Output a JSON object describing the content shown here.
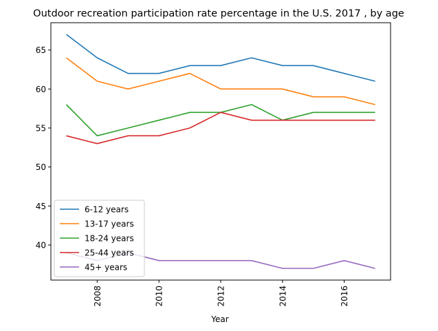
{
  "chart_data": {
    "type": "line",
    "title": "Outdoor recreation participation rate percentage in the U.S. 2017 , by age",
    "xlabel": "Year",
    "ylabel": "",
    "x": [
      2007,
      2008,
      2009,
      2010,
      2011,
      2012,
      2013,
      2014,
      2015,
      2016,
      2017
    ],
    "xlim": [
      2006.5,
      2017.5
    ],
    "ylim": [
      35.5,
      68.5
    ],
    "xticks": [
      2008,
      2010,
      2012,
      2014,
      2016
    ],
    "yticks": [
      40,
      45,
      50,
      55,
      60,
      65
    ],
    "legend_position": "lower-left",
    "grid": false,
    "series": [
      {
        "name": "6-12 years",
        "color": "#1f77b4",
        "values": [
          67,
          64,
          62,
          62,
          63,
          63,
          64,
          63,
          63,
          62,
          61
        ]
      },
      {
        "name": "13-17 years",
        "color": "#ff7f0e",
        "values": [
          64,
          61,
          60,
          61,
          62,
          60,
          60,
          60,
          59,
          59,
          58
        ]
      },
      {
        "name": "18-24 years",
        "color": "#2ca02c",
        "values": [
          58,
          54,
          55,
          56,
          57,
          57,
          58,
          56,
          57,
          57,
          57
        ]
      },
      {
        "name": "25-44 years",
        "color": "#d62728",
        "values": [
          54,
          53,
          54,
          54,
          55,
          57,
          56,
          56,
          56,
          56,
          56
        ]
      },
      {
        "name": "45+ years",
        "color": "#9467bd",
        "values": [
          39,
          38,
          39,
          38,
          38,
          38,
          38,
          37,
          37,
          38,
          37
        ]
      }
    ]
  }
}
